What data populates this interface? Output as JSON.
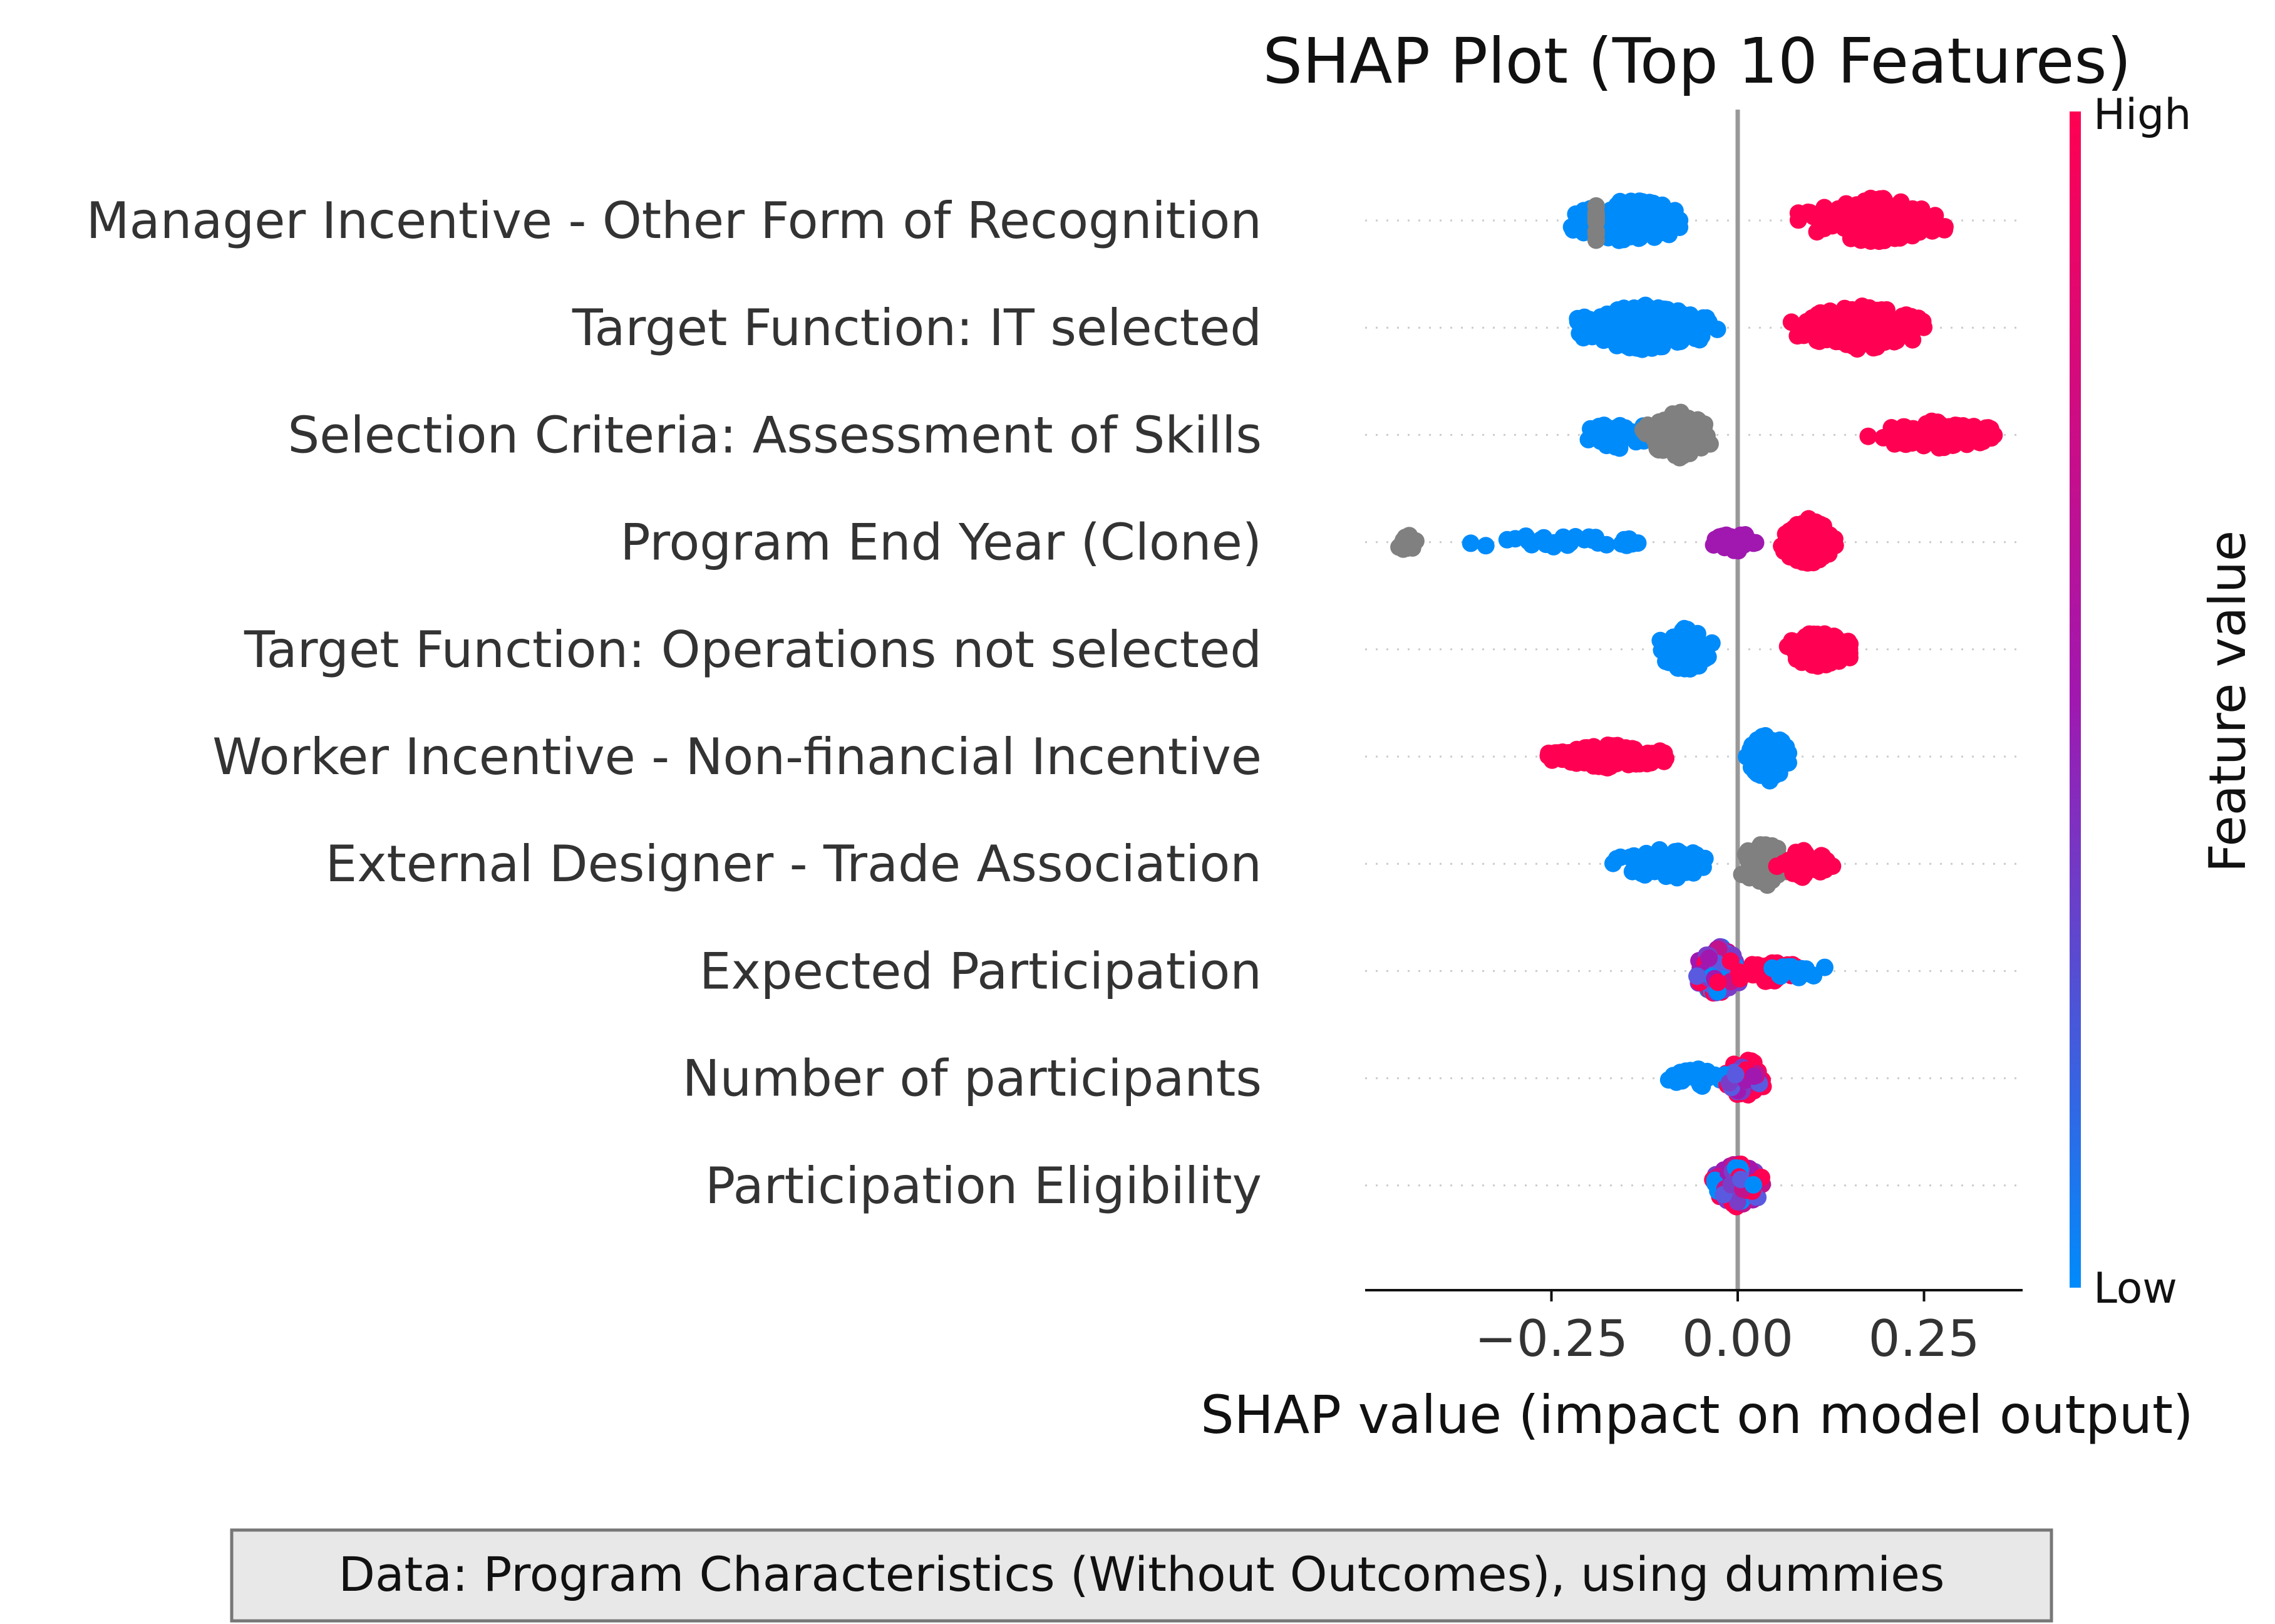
{
  "chart_data": {
    "type": "scatter",
    "title": "SHAP Plot (Top 10 Features)",
    "xlabel": "SHAP value (impact on model output)",
    "colorbar": {
      "label": "Feature value",
      "high_label": "High",
      "low_label": "Low",
      "high_color": "#ff0052",
      "mid_color": "#a018b0",
      "low_color": "#008bfb"
    },
    "x_ticks": [
      -0.25,
      0.0,
      0.25
    ],
    "x_tick_labels": [
      "−0.25",
      "0.00",
      "0.25"
    ],
    "xlim": [
      -0.5,
      0.39
    ],
    "features": [
      {
        "name": "Manager Incentive - Other Form of Recognition",
        "clusters": [
          {
            "min": -0.23,
            "max": -0.06,
            "color": "low",
            "n": 130,
            "spread": 0.5
          },
          {
            "min": -0.19,
            "max": -0.19,
            "color": "missing",
            "n": 12,
            "spread": 0.5
          },
          {
            "min": 0.08,
            "max": 0.29,
            "color": "high",
            "n": 140,
            "spread": 0.5
          }
        ]
      },
      {
        "name": "Target Function: IT selected",
        "clusters": [
          {
            "min": -0.23,
            "max": -0.02,
            "color": "low",
            "n": 170,
            "spread": 0.5
          },
          {
            "min": 0.07,
            "max": 0.26,
            "color": "high",
            "n": 160,
            "spread": 0.5
          }
        ]
      },
      {
        "name": "Selection Criteria: Assessment of Skills",
        "clusters": [
          {
            "min": -0.21,
            "max": -0.1,
            "color": "low",
            "n": 40,
            "spread": 0.3
          },
          {
            "min": -0.13,
            "max": -0.03,
            "color": "missing",
            "n": 110,
            "spread": 0.5
          },
          {
            "min": 0.16,
            "max": 0.36,
            "color": "high",
            "n": 110,
            "spread": 0.3
          }
        ]
      },
      {
        "name": "Program End Year (Clone)",
        "clusters": [
          {
            "min": -0.46,
            "max": -0.43,
            "color": "missing",
            "n": 18,
            "spread": 0.2
          },
          {
            "min": -0.39,
            "max": -0.12,
            "color": "low",
            "n": 32,
            "spread": 0.15
          },
          {
            "min": -0.05,
            "max": 0.04,
            "color": "mid",
            "n": 25,
            "spread": 0.2
          },
          {
            "min": 0.05,
            "max": 0.14,
            "color": "high",
            "n": 90,
            "spread": 0.5
          }
        ]
      },
      {
        "name": "Target Function: Operations not selected",
        "clusters": [
          {
            "min": -0.11,
            "max": -0.03,
            "color": "low",
            "n": 100,
            "spread": 0.5
          },
          {
            "min": 0.06,
            "max": 0.16,
            "color": "high",
            "n": 100,
            "spread": 0.4
          }
        ]
      },
      {
        "name": "Worker Incentive - Non-financial Incentive",
        "clusters": [
          {
            "min": -0.26,
            "max": -0.08,
            "color": "high",
            "n": 110,
            "spread": 0.25
          },
          {
            "min": 0.01,
            "max": 0.07,
            "color": "low",
            "n": 90,
            "spread": 0.55
          }
        ]
      },
      {
        "name": "External Designer - Trade Association",
        "clusters": [
          {
            "min": -0.17,
            "max": -0.02,
            "color": "low",
            "n": 70,
            "spread": 0.35
          },
          {
            "min": 0.0,
            "max": 0.07,
            "color": "missing",
            "n": 90,
            "spread": 0.5
          },
          {
            "min": 0.05,
            "max": 0.13,
            "color": "high",
            "n": 50,
            "spread": 0.3
          }
        ]
      },
      {
        "name": "Expected Participation",
        "clusters": [
          {
            "min": -0.06,
            "max": 0.01,
            "color": "mixed",
            "n": 90,
            "spread": 0.55
          },
          {
            "min": 0.0,
            "max": 0.09,
            "color": "high",
            "n": 40,
            "spread": 0.25
          },
          {
            "min": 0.03,
            "max": 0.13,
            "color": "low",
            "n": 25,
            "spread": 0.15
          }
        ]
      },
      {
        "name": "Number of participants",
        "clusters": [
          {
            "min": -0.1,
            "max": -0.01,
            "color": "low",
            "n": 30,
            "spread": 0.2
          },
          {
            "min": -0.02,
            "max": 0.04,
            "color": "high",
            "n": 50,
            "spread": 0.45
          },
          {
            "min": -0.02,
            "max": 0.03,
            "color": "mixed",
            "n": 30,
            "spread": 0.35
          }
        ]
      },
      {
        "name": "Participation Eligibility",
        "clusters": [
          {
            "min": -0.04,
            "max": 0.04,
            "color": "mixed",
            "n": 90,
            "spread": 0.5
          }
        ]
      }
    ]
  },
  "caption": "Data: Program Characteristics (Without Outcomes), using dummies"
}
